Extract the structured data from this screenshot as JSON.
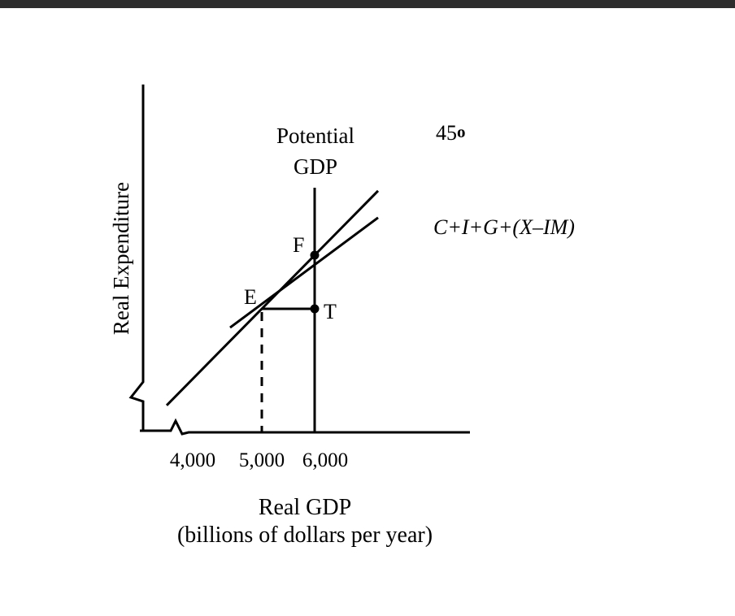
{
  "colors": {
    "top_bar": "#2d2d2d",
    "ink": "#000000",
    "background": "#ffffff"
  },
  "chart_data": {
    "type": "line",
    "xlabel": "Real GDP",
    "xlabel_sub": "(billions of dollars per year)",
    "ylabel": "Real Expenditure",
    "x_ticks": [
      "4,000",
      "5,000",
      "6,000"
    ],
    "xlim": [
      3200,
      7000
    ],
    "axis_breaks": {
      "x": true,
      "y": true
    },
    "grid": false,
    "series": [
      {
        "name": "45o",
        "line_label": "45",
        "line_label_mark": "o",
        "x": [
          3200,
          5000,
          6000,
          7200
        ],
        "y": [
          3200,
          5000,
          6000,
          7200
        ]
      },
      {
        "name": "C+I+G+(X–IM)",
        "x": [
          4400,
          7200
        ],
        "y": [
          4650,
          6700
        ]
      }
    ],
    "vertical_lines": [
      {
        "label_line1": "Potential",
        "label_line2": "GDP",
        "x": 6000,
        "style": "solid"
      },
      {
        "x": 5000,
        "style": "dashed",
        "from_axis_to": "E"
      }
    ],
    "points": [
      {
        "label": "E",
        "x": 5000,
        "y": 5000,
        "marker": false
      },
      {
        "label": "F",
        "x": 6000,
        "y": 6000,
        "marker": true
      },
      {
        "label": "T",
        "x": 6000,
        "y": 5000,
        "marker": true
      }
    ],
    "segments": [
      {
        "from": "E",
        "to": "T",
        "style": "solid"
      }
    ]
  }
}
